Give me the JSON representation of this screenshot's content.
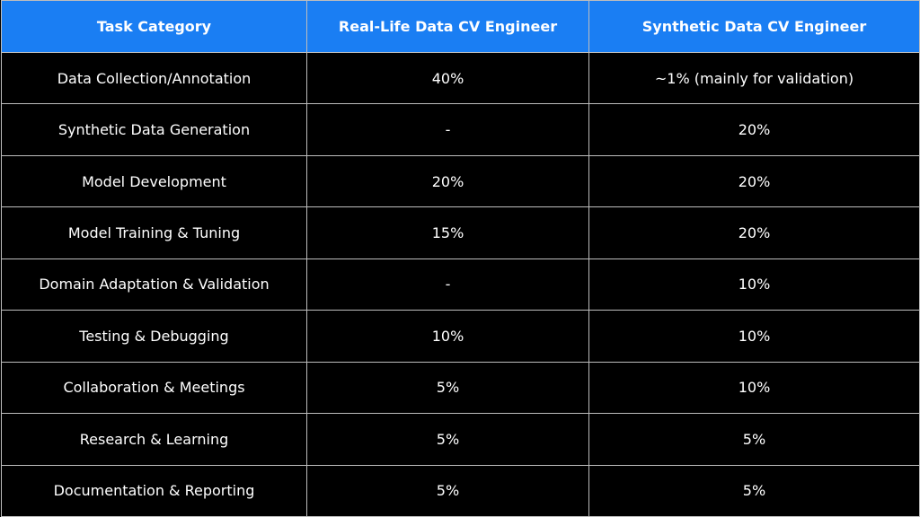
{
  "table": {
    "header": [
      "Task Category",
      "Real-Life Data CV Engineer",
      "Synthetic Data CV Engineer"
    ],
    "rows": [
      [
        "Data Collection/Annotation",
        "40%",
        "~1% (mainly for validation)"
      ],
      [
        "Synthetic Data Generation",
        "-",
        "20%"
      ],
      [
        "Model Development",
        "20%",
        "20%"
      ],
      [
        "Model Training & Tuning",
        "15%",
        "20%"
      ],
      [
        "Domain Adaptation & Validation",
        "-",
        "10%"
      ],
      [
        "Testing & Debugging",
        "10%",
        "10%"
      ],
      [
        "Collaboration & Meetings",
        "5%",
        "10%"
      ],
      [
        "Research & Learning",
        "5%",
        "5%"
      ],
      [
        "Documentation & Reporting",
        "5%",
        "5%"
      ]
    ]
  }
}
